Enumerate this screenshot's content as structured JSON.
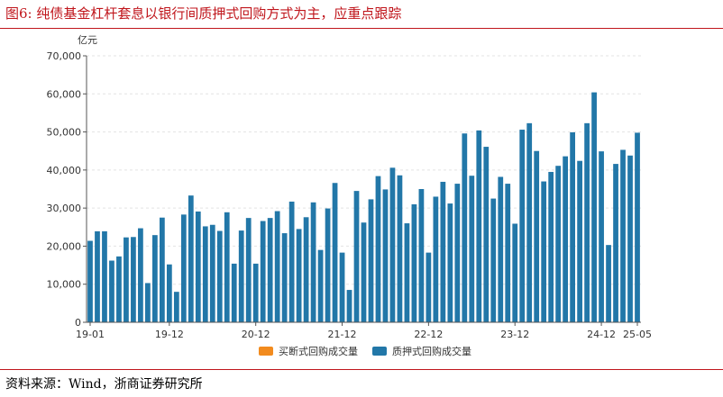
{
  "header": {
    "figure_title": "图6:  纯债基金杠杆套息以银行间质押式回购方式为主，应重点跟踪"
  },
  "footer": {
    "source": "资料来源：Wind，浙商证券研究所"
  },
  "chart_data": {
    "type": "bar",
    "ylabel": "亿元",
    "ylim": [
      0,
      70000
    ],
    "yticks": [
      "0",
      "10,000",
      "20,000",
      "30,000",
      "40,000",
      "50,000",
      "60,000",
      "70,000"
    ],
    "ytick_values": [
      0,
      10000,
      20000,
      30000,
      40000,
      50000,
      60000,
      70000
    ],
    "xtick_labels": [
      "19-01",
      "19-12",
      "20-12",
      "21-12",
      "22-12",
      "23-12",
      "24-12",
      "25-05"
    ],
    "xtick_indices": [
      0,
      11,
      23,
      35,
      47,
      59,
      71,
      76
    ],
    "grid": true,
    "legend_position": "bottom-center",
    "categories": [
      "19-01",
      "19-02",
      "19-03",
      "19-04",
      "19-05",
      "19-06",
      "19-07",
      "19-08",
      "19-09",
      "19-10",
      "19-11",
      "19-12",
      "20-01",
      "20-02",
      "20-03",
      "20-04",
      "20-05",
      "20-06",
      "20-07",
      "20-08",
      "20-09",
      "20-10",
      "20-11",
      "20-12",
      "21-01",
      "21-02",
      "21-03",
      "21-04",
      "21-05",
      "21-06",
      "21-07",
      "21-08",
      "21-09",
      "21-10",
      "21-11",
      "21-12",
      "22-01",
      "22-02",
      "22-03",
      "22-04",
      "22-05",
      "22-06",
      "22-07",
      "22-08",
      "22-09",
      "22-10",
      "22-11",
      "22-12",
      "23-01",
      "23-02",
      "23-03",
      "23-04",
      "23-05",
      "23-06",
      "23-07",
      "23-08",
      "23-09",
      "23-10",
      "23-11",
      "23-12",
      "24-01",
      "24-02",
      "24-03",
      "24-04",
      "24-05",
      "24-06",
      "24-07",
      "24-08",
      "24-09",
      "24-10",
      "24-11",
      "24-12",
      "25-01",
      "25-02",
      "25-03",
      "25-04",
      "25-05"
    ],
    "series": [
      {
        "name": "买断式回购成交量",
        "color": "#f28b1e",
        "values": [
          150,
          150,
          150,
          150,
          150,
          150,
          150,
          150,
          150,
          150,
          150,
          150,
          150,
          150,
          150,
          150,
          150,
          150,
          150,
          150,
          150,
          150,
          150,
          150,
          150,
          150,
          150,
          150,
          150,
          150,
          150,
          150,
          150,
          150,
          150,
          150,
          150,
          150,
          150,
          150,
          150,
          150,
          150,
          150,
          150,
          150,
          150,
          150,
          150,
          150,
          150,
          150,
          150,
          150,
          150,
          150,
          150,
          150,
          150,
          150,
          150,
          150,
          150,
          150,
          150,
          150,
          150,
          150,
          150,
          150,
          150,
          150,
          150,
          150,
          150,
          150,
          150
        ]
      },
      {
        "name": "质押式回购成交量",
        "color": "#2277a8",
        "values": [
          21400,
          23900,
          23900,
          16200,
          17300,
          22300,
          22400,
          24700,
          10300,
          22900,
          27500,
          15200,
          8000,
          28300,
          33300,
          29100,
          25200,
          25600,
          24000,
          28900,
          15400,
          24100,
          27400,
          15400,
          26600,
          27400,
          29200,
          23400,
          31700,
          24500,
          27600,
          31500,
          19000,
          29900,
          36600,
          18300,
          8500,
          34500,
          26200,
          32300,
          38400,
          34900,
          40600,
          38600,
          26000,
          31000,
          35000,
          18300,
          33000,
          36900,
          31200,
          36400,
          49600,
          38500,
          50400,
          46100,
          32500,
          38200,
          36400,
          25900,
          50600,
          52300,
          45000,
          37000,
          39500,
          41100,
          43600,
          49900,
          42400,
          52300,
          60400,
          44900,
          20300,
          41600,
          45300,
          43800,
          49800
        ]
      }
    ]
  }
}
